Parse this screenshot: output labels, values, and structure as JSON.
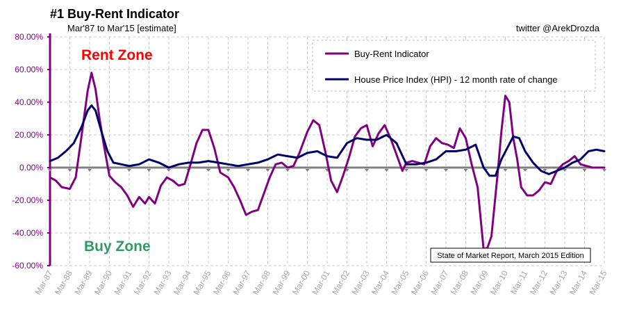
{
  "chart_data": {
    "type": "line",
    "title": "#1 Buy-Rent Indicator",
    "subtitle": "Mar'87 to Mar'15 [estimate]",
    "credit": "twitter @ArekDrozda",
    "annotations": {
      "rent_zone": "Rent Zone",
      "buy_zone": "Buy Zone",
      "edition": "State of Market Report, March 2015 Edition"
    },
    "colors": {
      "buy_rent": "#800080",
      "hpi": "#000066",
      "rent_zone": "#ff0000",
      "buy_zone": "#339966",
      "axis": "#800080",
      "zero_line": "#808080",
      "grid": "#c8c8c8"
    },
    "ylim": [
      -0.6,
      0.8
    ],
    "xlim": [
      1987,
      2015
    ],
    "yticks": [
      {
        "value": 0.8,
        "label": "80.00%"
      },
      {
        "value": 0.6,
        "label": "60.00%"
      },
      {
        "value": 0.4,
        "label": "40.00%"
      },
      {
        "value": 0.2,
        "label": "20.00%"
      },
      {
        "value": 0.0,
        "label": "0.00%"
      },
      {
        "value": -0.2,
        "label": "-20.00%"
      },
      {
        "value": -0.4,
        "label": "-40.00%"
      },
      {
        "value": -0.6,
        "label": "-60.00%"
      }
    ],
    "xticks": [
      "Mar-87",
      "Mar-88",
      "Mar-89",
      "Mar-90",
      "Mar-91",
      "Mar-92",
      "Mar-93",
      "Mar-94",
      "Mar-95",
      "Mar-96",
      "Mar-97",
      "Mar-98",
      "Mar-99",
      "Mar-00",
      "Mar-01",
      "Mar-02",
      "Mar-03",
      "Mar-04",
      "Mar-05",
      "Mar-06",
      "Mar-07",
      "Mar-08",
      "Mar-09",
      "Mar-10",
      "Mar-11",
      "Mar-12",
      "Mar-13",
      "Mar-14",
      "Mar-15"
    ],
    "grid": true,
    "legend_position": "top-right",
    "series": [
      {
        "name": "Buy-Rent Indicator",
        "x": [
          1987.0,
          1987.3,
          1987.6,
          1988.0,
          1988.3,
          1988.6,
          1988.9,
          1989.1,
          1989.3,
          1989.5,
          1989.7,
          1990.0,
          1990.3,
          1990.6,
          1990.9,
          1991.2,
          1991.5,
          1991.8,
          1992.0,
          1992.3,
          1992.6,
          1992.9,
          1993.2,
          1993.5,
          1993.8,
          1994.1,
          1994.4,
          1994.7,
          1995.0,
          1995.3,
          1995.6,
          1996.0,
          1996.3,
          1996.6,
          1996.9,
          1997.2,
          1997.5,
          1997.8,
          1998.1,
          1998.4,
          1998.7,
          1999.0,
          1999.3,
          1999.6,
          2000.0,
          2000.3,
          2000.6,
          2000.9,
          2001.2,
          2001.5,
          2001.8,
          2002.1,
          2002.4,
          2002.7,
          2003.0,
          2003.3,
          2003.6,
          2003.9,
          2004.2,
          2004.5,
          2004.8,
          2005.0,
          2005.3,
          2005.6,
          2005.9,
          2006.2,
          2006.5,
          2006.8,
          2007.1,
          2007.4,
          2007.7,
          2008.0,
          2008.3,
          2008.6,
          2008.9,
          2009.1,
          2009.3,
          2009.6,
          2009.8,
          2010.0,
          2010.2,
          2010.4,
          2010.6,
          2010.8,
          2011.1,
          2011.4,
          2011.7,
          2012.0,
          2012.3,
          2012.6,
          2012.9,
          2013.2,
          2013.5,
          2013.8,
          2014.1,
          2014.4,
          2014.7,
          2015.0
        ],
        "values": [
          -0.06,
          -0.08,
          -0.12,
          -0.13,
          -0.06,
          0.2,
          0.47,
          0.58,
          0.48,
          0.3,
          0.15,
          -0.05,
          -0.09,
          -0.12,
          -0.17,
          -0.24,
          -0.18,
          -0.22,
          -0.18,
          -0.22,
          -0.11,
          -0.06,
          -0.08,
          -0.11,
          -0.1,
          0.02,
          0.15,
          0.23,
          0.23,
          0.12,
          -0.03,
          -0.06,
          -0.12,
          -0.2,
          -0.29,
          -0.27,
          -0.26,
          -0.16,
          -0.06,
          0.02,
          0.03,
          0.0,
          0.01,
          0.09,
          0.22,
          0.29,
          0.26,
          0.1,
          -0.08,
          -0.15,
          -0.05,
          0.06,
          0.19,
          0.24,
          0.26,
          0.13,
          0.21,
          0.26,
          0.18,
          0.08,
          -0.02,
          0.03,
          0.04,
          0.03,
          0.02,
          0.13,
          0.18,
          0.15,
          0.14,
          0.12,
          0.24,
          0.18,
          0.02,
          -0.12,
          -0.5,
          -0.49,
          -0.42,
          -0.05,
          0.22,
          0.44,
          0.4,
          0.18,
          0.05,
          -0.12,
          -0.17,
          -0.17,
          -0.14,
          -0.09,
          -0.1,
          -0.02,
          0.02,
          0.04,
          0.07,
          0.02,
          0.01,
          0.0,
          0.0,
          0.0
        ]
      },
      {
        "name": "House Price Index (HPI) - 12 month rate of change",
        "x": [
          1987.0,
          1987.4,
          1987.8,
          1988.2,
          1988.6,
          1988.9,
          1989.1,
          1989.3,
          1989.6,
          1989.9,
          1990.2,
          1990.6,
          1991.0,
          1991.5,
          1992.0,
          1992.5,
          1993.0,
          1993.5,
          1994.0,
          1994.5,
          1995.0,
          1995.5,
          1996.0,
          1996.5,
          1997.0,
          1997.5,
          1998.0,
          1998.5,
          1999.0,
          1999.5,
          2000.0,
          2000.5,
          2001.0,
          2001.5,
          2002.0,
          2002.5,
          2003.0,
          2003.5,
          2004.0,
          2004.5,
          2005.0,
          2005.5,
          2006.0,
          2006.5,
          2007.0,
          2007.5,
          2008.0,
          2008.5,
          2008.9,
          2009.2,
          2009.5,
          2009.8,
          2010.1,
          2010.4,
          2010.7,
          2011.0,
          2011.4,
          2011.8,
          2012.2,
          2012.6,
          2013.0,
          2013.4,
          2013.8,
          2014.2,
          2014.6,
          2015.0
        ],
        "values": [
          0.04,
          0.06,
          0.1,
          0.15,
          0.25,
          0.35,
          0.38,
          0.35,
          0.22,
          0.1,
          0.03,
          0.02,
          0.01,
          0.02,
          0.05,
          0.03,
          0.0,
          0.02,
          0.03,
          0.03,
          0.04,
          0.03,
          0.02,
          0.01,
          0.02,
          0.03,
          0.05,
          0.08,
          0.07,
          0.06,
          0.09,
          0.1,
          0.07,
          0.06,
          0.15,
          0.18,
          0.17,
          0.17,
          0.2,
          0.15,
          0.02,
          0.02,
          0.03,
          0.05,
          0.1,
          0.1,
          0.11,
          0.14,
          0.0,
          -0.05,
          -0.05,
          0.05,
          0.12,
          0.19,
          0.18,
          0.1,
          0.03,
          -0.02,
          -0.04,
          -0.02,
          0.0,
          0.03,
          0.05,
          0.1,
          0.11,
          0.1
        ]
      }
    ]
  }
}
